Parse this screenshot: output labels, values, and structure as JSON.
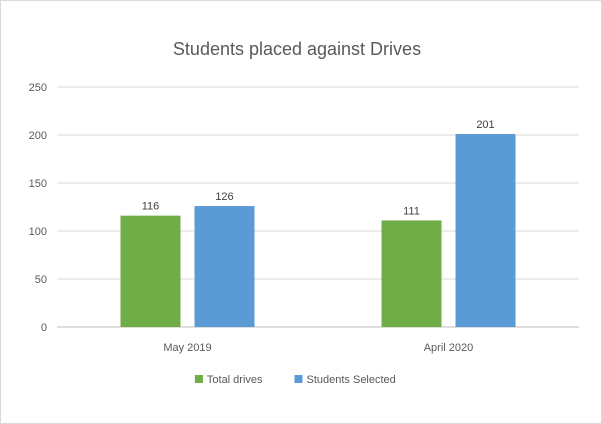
{
  "chart_data": {
    "type": "bar",
    "title": "Students placed against Drives",
    "xlabel": "",
    "ylabel": "",
    "categories": [
      "May 2019",
      "April 2020"
    ],
    "series": [
      {
        "name": "Total drives",
        "values": [
          116,
          111
        ],
        "color": "#70ad47"
      },
      {
        "name": "Students Selected",
        "values": [
          126,
          201
        ],
        "color": "#5b9bd5"
      }
    ],
    "ylim": [
      0,
      250
    ],
    "yticks": [
      0,
      50,
      100,
      150,
      200,
      250
    ],
    "grid": true,
    "legend": "bottom",
    "gridline_color": "#d9d9d9",
    "axis_color": "#bfbfbf"
  }
}
